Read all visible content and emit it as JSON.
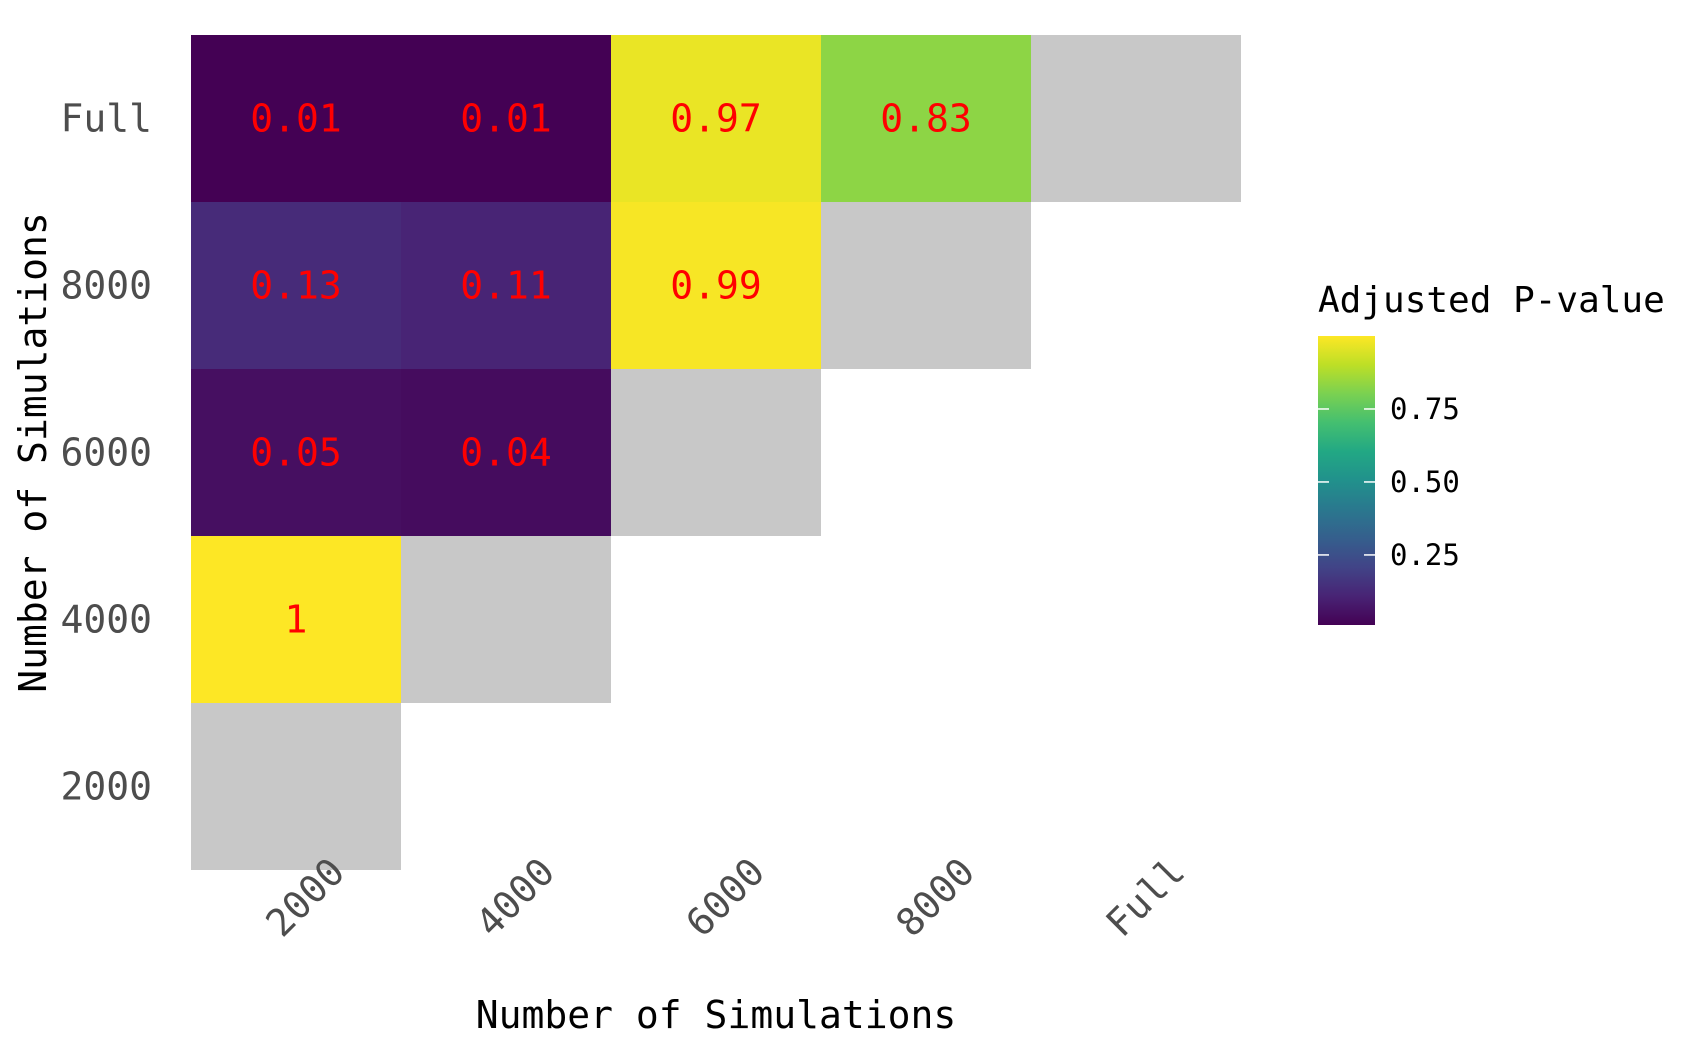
{
  "chart_data": {
    "type": "heatmap",
    "xlabel": "Number of Simulations",
    "ylabel": "Number of Simulations",
    "x_categories": [
      "2000",
      "4000",
      "6000",
      "8000",
      "Full"
    ],
    "y_categories": [
      "2000",
      "4000",
      "6000",
      "8000",
      "Full"
    ],
    "cells": [
      {
        "x": "2000",
        "y": "4000",
        "value": 1,
        "label": "1"
      },
      {
        "x": "2000",
        "y": "6000",
        "value": 0.05,
        "label": "0.05"
      },
      {
        "x": "4000",
        "y": "6000",
        "value": 0.04,
        "label": "0.04"
      },
      {
        "x": "2000",
        "y": "8000",
        "value": 0.13,
        "label": "0.13"
      },
      {
        "x": "4000",
        "y": "8000",
        "value": 0.11,
        "label": "0.11"
      },
      {
        "x": "6000",
        "y": "8000",
        "value": 0.99,
        "label": "0.99"
      },
      {
        "x": "2000",
        "y": "Full",
        "value": 0.01,
        "label": "0.01"
      },
      {
        "x": "4000",
        "y": "Full",
        "value": 0.01,
        "label": "0.01"
      },
      {
        "x": "6000",
        "y": "Full",
        "value": 0.97,
        "label": "0.97"
      },
      {
        "x": "8000",
        "y": "Full",
        "value": 0.83,
        "label": "0.83"
      }
    ],
    "na_cells": [
      {
        "x": "2000",
        "y": "2000"
      },
      {
        "x": "4000",
        "y": "4000"
      },
      {
        "x": "6000",
        "y": "6000"
      },
      {
        "x": "8000",
        "y": "8000"
      },
      {
        "x": "Full",
        "y": "Full"
      }
    ],
    "na_color": "#c8c8c8",
    "label_color": "#ff0000",
    "colorscale": "viridis",
    "value_range": [
      0.01,
      1
    ],
    "legend": {
      "title": "Adjusted P-value",
      "ticks": [
        0.25,
        0.5,
        0.75
      ],
      "tick_labels": [
        "0.25",
        "0.50",
        "0.75"
      ],
      "position": "right"
    },
    "grid": false
  }
}
